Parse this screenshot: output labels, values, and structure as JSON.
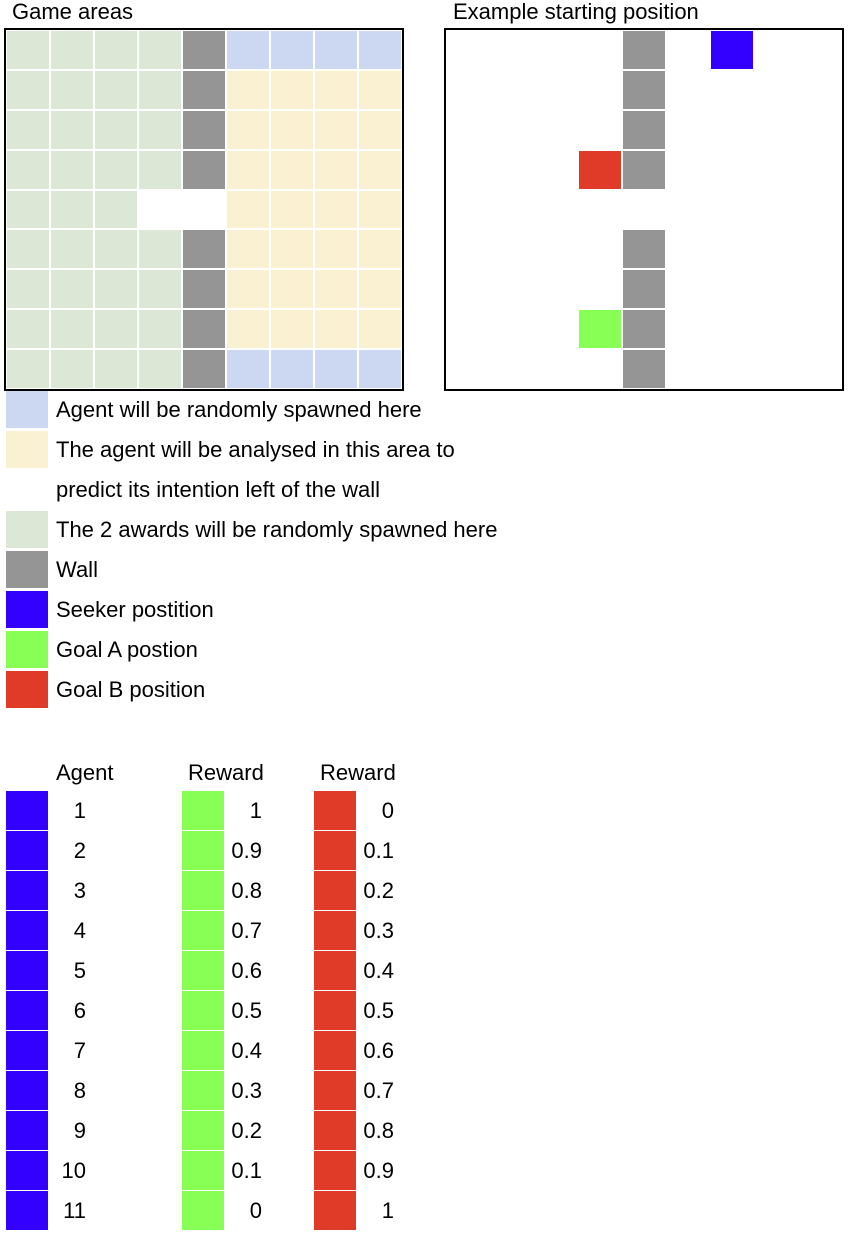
{
  "colors": {
    "spawn": "#ccd8f2",
    "analysis": "#faf1d2",
    "awards": "#dce7d6",
    "wall": "#959595",
    "seeker": "#3300ff",
    "goal_a": "#88ff55",
    "goal_b": "#e03a28"
  },
  "game_areas": {
    "title": "Game areas",
    "columns": 9,
    "rows": 9,
    "cells": [
      [
        "awards",
        "awards",
        "awards",
        "awards",
        "wall",
        "spawn",
        "spawn",
        "spawn",
        "spawn"
      ],
      [
        "awards",
        "awards",
        "awards",
        "awards",
        "wall",
        "analysis",
        "analysis",
        "analysis",
        "analysis"
      ],
      [
        "awards",
        "awards",
        "awards",
        "awards",
        "wall",
        "analysis",
        "analysis",
        "analysis",
        "analysis"
      ],
      [
        "awards",
        "awards",
        "awards",
        "awards",
        "wall",
        "analysis",
        "analysis",
        "analysis",
        "analysis"
      ],
      [
        "awards",
        "awards",
        "awards",
        "empty",
        "empty",
        "analysis",
        "analysis",
        "analysis",
        "analysis"
      ],
      [
        "awards",
        "awards",
        "awards",
        "awards",
        "wall",
        "analysis",
        "analysis",
        "analysis",
        "analysis"
      ],
      [
        "awards",
        "awards",
        "awards",
        "awards",
        "wall",
        "analysis",
        "analysis",
        "analysis",
        "analysis"
      ],
      [
        "awards",
        "awards",
        "awards",
        "awards",
        "wall",
        "analysis",
        "analysis",
        "analysis",
        "analysis"
      ],
      [
        "awards",
        "awards",
        "awards",
        "awards",
        "wall",
        "spawn",
        "spawn",
        "spawn",
        "spawn"
      ]
    ]
  },
  "example": {
    "title": "Example starting position",
    "columns": 9,
    "rows": 9,
    "cells": [
      [
        "empty",
        "empty",
        "empty",
        "empty",
        "wall",
        "empty",
        "seeker",
        "empty",
        "empty"
      ],
      [
        "empty",
        "empty",
        "empty",
        "empty",
        "wall",
        "empty",
        "empty",
        "empty",
        "empty"
      ],
      [
        "empty",
        "empty",
        "empty",
        "empty",
        "wall",
        "empty",
        "empty",
        "empty",
        "empty"
      ],
      [
        "empty",
        "empty",
        "empty",
        "goal_b",
        "wall",
        "empty",
        "empty",
        "empty",
        "empty"
      ],
      [
        "empty",
        "empty",
        "empty",
        "empty",
        "empty",
        "empty",
        "empty",
        "empty",
        "empty"
      ],
      [
        "empty",
        "empty",
        "empty",
        "empty",
        "wall",
        "empty",
        "empty",
        "empty",
        "empty"
      ],
      [
        "empty",
        "empty",
        "empty",
        "empty",
        "wall",
        "empty",
        "empty",
        "empty",
        "empty"
      ],
      [
        "empty",
        "empty",
        "empty",
        "goal_a",
        "wall",
        "empty",
        "empty",
        "empty",
        "empty"
      ],
      [
        "empty",
        "empty",
        "empty",
        "empty",
        "wall",
        "empty",
        "empty",
        "empty",
        "empty"
      ]
    ]
  },
  "legend": [
    {
      "color": "spawn",
      "text": "Agent will be randomly spawned here"
    },
    {
      "color": "analysis",
      "text": "The agent will be analysed in this area to"
    },
    {
      "color": "",
      "text": "predict its intention left of the wall"
    },
    {
      "color": "awards",
      "text": "The 2 awards will be randomly spawned here"
    },
    {
      "color": "wall",
      "text": "Wall"
    },
    {
      "color": "seeker",
      "text": "Seeker postition"
    },
    {
      "color": "goal_a",
      "text": "Goal A postion"
    },
    {
      "color": "goal_b",
      "text": "Goal B position"
    }
  ],
  "table": {
    "headers": [
      "Agent",
      "Reward",
      "Reward"
    ],
    "rows": [
      {
        "agent": "1",
        "reward_a": "1",
        "reward_b": "0"
      },
      {
        "agent": "2",
        "reward_a": "0.9",
        "reward_b": "0.1"
      },
      {
        "agent": "3",
        "reward_a": "0.8",
        "reward_b": "0.2"
      },
      {
        "agent": "4",
        "reward_a": "0.7",
        "reward_b": "0.3"
      },
      {
        "agent": "5",
        "reward_a": "0.6",
        "reward_b": "0.4"
      },
      {
        "agent": "6",
        "reward_a": "0.5",
        "reward_b": "0.5"
      },
      {
        "agent": "7",
        "reward_a": "0.4",
        "reward_b": "0.6"
      },
      {
        "agent": "8",
        "reward_a": "0.3",
        "reward_b": "0.7"
      },
      {
        "agent": "9",
        "reward_a": "0.2",
        "reward_b": "0.8"
      },
      {
        "agent": "10",
        "reward_a": "0.1",
        "reward_b": "0.9"
      },
      {
        "agent": "11",
        "reward_a": "0",
        "reward_b": "1"
      }
    ]
  }
}
